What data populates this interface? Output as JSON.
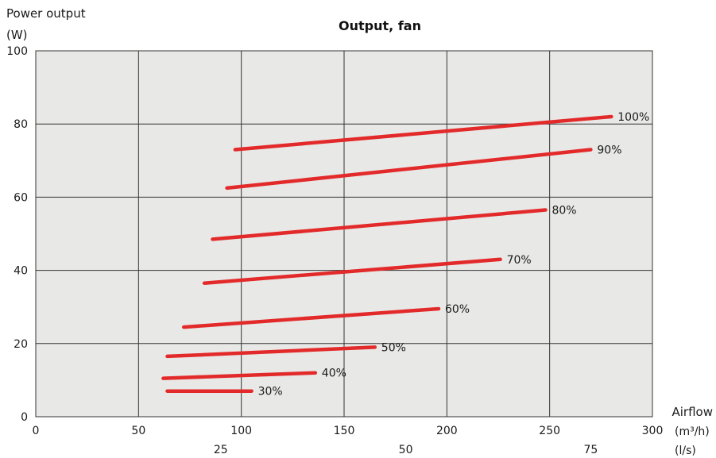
{
  "chart_data": {
    "type": "line",
    "title": "Output, fan",
    "ylabel_line1": "Power output",
    "ylabel_line2": "(W)",
    "xlabel": "Airflow",
    "xunit_primary": "(m³/h)",
    "xunit_secondary": "(l/s)",
    "xlim": [
      0,
      300
    ],
    "ylim": [
      0,
      100
    ],
    "xticks": [
      0,
      50,
      100,
      150,
      200,
      250,
      300
    ],
    "yticks": [
      0,
      20,
      40,
      60,
      80,
      100
    ],
    "xticks_secondary": [
      {
        "label": "25",
        "at_m3h": 90
      },
      {
        "label": "50",
        "at_m3h": 180
      },
      {
        "label": "75",
        "at_m3h": 270
      }
    ],
    "grid": true,
    "background_color": "#e8e8e6",
    "line_color": "#e32a2a",
    "series": [
      {
        "name": "100%",
        "x": [
          97,
          280
        ],
        "y": [
          73,
          82
        ]
      },
      {
        "name": "90%",
        "x": [
          93,
          270
        ],
        "y": [
          62.5,
          73
        ]
      },
      {
        "name": "80%",
        "x": [
          86,
          248
        ],
        "y": [
          48.5,
          56.5
        ]
      },
      {
        "name": "70%",
        "x": [
          82,
          226
        ],
        "y": [
          36.5,
          43
        ]
      },
      {
        "name": "60%",
        "x": [
          72,
          196
        ],
        "y": [
          24.5,
          29.5
        ]
      },
      {
        "name": "50%",
        "x": [
          64,
          165
        ],
        "y": [
          16.5,
          19
        ]
      },
      {
        "name": "40%",
        "x": [
          62,
          136
        ],
        "y": [
          10.5,
          12
        ]
      },
      {
        "name": "30%",
        "x": [
          64,
          105
        ],
        "y": [
          7,
          7
        ]
      }
    ]
  }
}
